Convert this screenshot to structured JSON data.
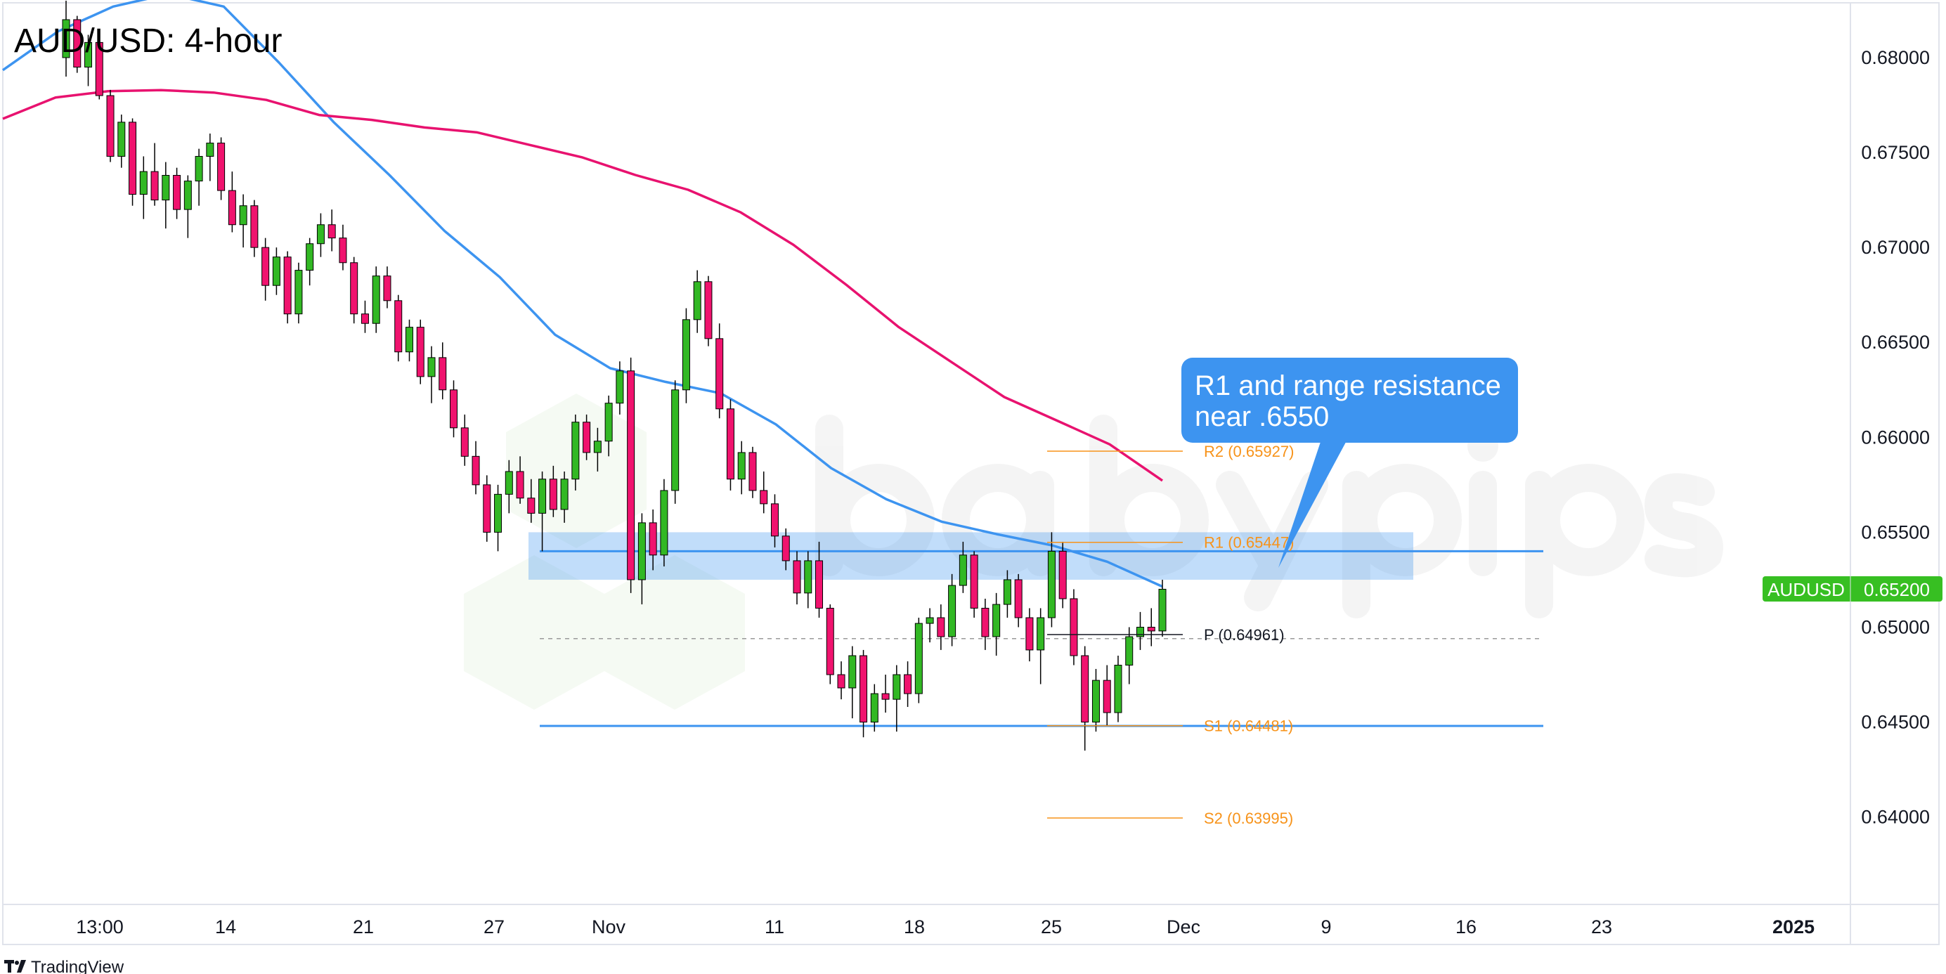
{
  "chart_data": {
    "type": "candlestick",
    "title": "AUD/USD: 4-hour",
    "symbol": "AUDUSD",
    "last_price": "0.65200",
    "ylim": [
      0.6345,
      0.684
    ],
    "y_ticks": [
      "0.68000",
      "0.67500",
      "0.67000",
      "0.66500",
      "0.66000",
      "0.65500",
      "0.65000",
      "0.64500",
      "0.64000"
    ],
    "x_ticks": [
      "13:00",
      "14",
      "21",
      "27",
      "Nov",
      "11",
      "18",
      "25",
      "Dec",
      "9",
      "16",
      "23",
      "2025"
    ],
    "candles_ohlc": [
      [
        0.68,
        0.683,
        0.679,
        0.682
      ],
      [
        0.682,
        0.6822,
        0.6792,
        0.6795
      ],
      [
        0.6795,
        0.6812,
        0.6785,
        0.6808
      ],
      [
        0.6808,
        0.681,
        0.6778,
        0.678
      ],
      [
        0.678,
        0.6783,
        0.6745,
        0.6748
      ],
      [
        0.6748,
        0.677,
        0.6742,
        0.6766
      ],
      [
        0.6766,
        0.6768,
        0.6722,
        0.6728
      ],
      [
        0.6728,
        0.6748,
        0.6715,
        0.674
      ],
      [
        0.674,
        0.6755,
        0.6722,
        0.6725
      ],
      [
        0.6725,
        0.6745,
        0.671,
        0.6738
      ],
      [
        0.6738,
        0.6742,
        0.6715,
        0.672
      ],
      [
        0.672,
        0.6738,
        0.6705,
        0.6735
      ],
      [
        0.6735,
        0.6752,
        0.6722,
        0.6748
      ],
      [
        0.6748,
        0.676,
        0.6735,
        0.6755
      ],
      [
        0.6755,
        0.6758,
        0.6725,
        0.673
      ],
      [
        0.673,
        0.674,
        0.6708,
        0.6712
      ],
      [
        0.6712,
        0.6728,
        0.67,
        0.6722
      ],
      [
        0.6722,
        0.6725,
        0.6695,
        0.67
      ],
      [
        0.67,
        0.6705,
        0.6672,
        0.668
      ],
      [
        0.668,
        0.67,
        0.6675,
        0.6695
      ],
      [
        0.6695,
        0.6698,
        0.666,
        0.6665
      ],
      [
        0.6665,
        0.6692,
        0.666,
        0.6688
      ],
      [
        0.6688,
        0.6705,
        0.668,
        0.6702
      ],
      [
        0.6702,
        0.6718,
        0.6695,
        0.6712
      ],
      [
        0.6712,
        0.672,
        0.6698,
        0.6705
      ],
      [
        0.6705,
        0.6712,
        0.6688,
        0.6692
      ],
      [
        0.6692,
        0.6695,
        0.666,
        0.6665
      ],
      [
        0.6665,
        0.6672,
        0.6655,
        0.666
      ],
      [
        0.666,
        0.669,
        0.6655,
        0.6685
      ],
      [
        0.6685,
        0.669,
        0.6668,
        0.6672
      ],
      [
        0.6672,
        0.6675,
        0.664,
        0.6645
      ],
      [
        0.6645,
        0.6662,
        0.664,
        0.6658
      ],
      [
        0.6658,
        0.6662,
        0.6628,
        0.6632
      ],
      [
        0.6632,
        0.6648,
        0.6618,
        0.6642
      ],
      [
        0.6642,
        0.665,
        0.662,
        0.6625
      ],
      [
        0.6625,
        0.663,
        0.66,
        0.6605
      ],
      [
        0.6605,
        0.6612,
        0.6585,
        0.659
      ],
      [
        0.659,
        0.6598,
        0.657,
        0.6575
      ],
      [
        0.6575,
        0.658,
        0.6545,
        0.655
      ],
      [
        0.655,
        0.6575,
        0.654,
        0.657
      ],
      [
        0.657,
        0.6588,
        0.656,
        0.6582
      ],
      [
        0.6582,
        0.659,
        0.6565,
        0.6568
      ],
      [
        0.6568,
        0.6578,
        0.6555,
        0.656
      ],
      [
        0.656,
        0.6582,
        0.654,
        0.6578
      ],
      [
        0.6578,
        0.6585,
        0.6558,
        0.6562
      ],
      [
        0.6562,
        0.6582,
        0.6555,
        0.6578
      ],
      [
        0.6578,
        0.6612,
        0.6572,
        0.6608
      ],
      [
        0.6608,
        0.6612,
        0.6588,
        0.6592
      ],
      [
        0.6592,
        0.6605,
        0.6582,
        0.6598
      ],
      [
        0.6598,
        0.6622,
        0.659,
        0.6618
      ],
      [
        0.6618,
        0.664,
        0.6612,
        0.6635
      ],
      [
        0.6635,
        0.6642,
        0.6518,
        0.6525
      ],
      [
        0.6525,
        0.656,
        0.6512,
        0.6555
      ],
      [
        0.6555,
        0.6562,
        0.653,
        0.6538
      ],
      [
        0.6538,
        0.6578,
        0.6532,
        0.6572
      ],
      [
        0.6572,
        0.663,
        0.6565,
        0.6625
      ],
      [
        0.6625,
        0.6668,
        0.6618,
        0.6662
      ],
      [
        0.6662,
        0.6688,
        0.6655,
        0.6682
      ],
      [
        0.6682,
        0.6685,
        0.6648,
        0.6652
      ],
      [
        0.6652,
        0.666,
        0.661,
        0.6615
      ],
      [
        0.6615,
        0.662,
        0.6572,
        0.6578
      ],
      [
        0.6578,
        0.6598,
        0.657,
        0.6592
      ],
      [
        0.6592,
        0.6595,
        0.6568,
        0.6572
      ],
      [
        0.6572,
        0.6582,
        0.656,
        0.6565
      ],
      [
        0.6565,
        0.657,
        0.6542,
        0.6548
      ],
      [
        0.6548,
        0.6552,
        0.653,
        0.6535
      ],
      [
        0.6535,
        0.654,
        0.6512,
        0.6518
      ],
      [
        0.6518,
        0.654,
        0.651,
        0.6535
      ],
      [
        0.6535,
        0.6545,
        0.6505,
        0.651
      ],
      [
        0.651,
        0.6512,
        0.647,
        0.6475
      ],
      [
        0.6475,
        0.6482,
        0.6462,
        0.6468
      ],
      [
        0.6468,
        0.649,
        0.6452,
        0.6485
      ],
      [
        0.6485,
        0.6488,
        0.6442,
        0.645
      ],
      [
        0.645,
        0.647,
        0.6445,
        0.6465
      ],
      [
        0.6465,
        0.6475,
        0.6455,
        0.6462
      ],
      [
        0.6462,
        0.648,
        0.6445,
        0.6475
      ],
      [
        0.6475,
        0.6482,
        0.6458,
        0.6465
      ],
      [
        0.6465,
        0.6505,
        0.646,
        0.6502
      ],
      [
        0.6502,
        0.651,
        0.6492,
        0.6505
      ],
      [
        0.6505,
        0.6512,
        0.6488,
        0.6495
      ],
      [
        0.6495,
        0.6528,
        0.649,
        0.6522
      ],
      [
        0.6522,
        0.6545,
        0.6518,
        0.6538
      ],
      [
        0.6538,
        0.654,
        0.6505,
        0.651
      ],
      [
        0.651,
        0.6515,
        0.6488,
        0.6495
      ],
      [
        0.6495,
        0.6518,
        0.6485,
        0.6512
      ],
      [
        0.6512,
        0.653,
        0.6505,
        0.6525
      ],
      [
        0.6525,
        0.6528,
        0.65,
        0.6505
      ],
      [
        0.6505,
        0.651,
        0.6482,
        0.6488
      ],
      [
        0.6488,
        0.651,
        0.647,
        0.6505
      ],
      [
        0.6505,
        0.655,
        0.65,
        0.654
      ],
      [
        0.654,
        0.6545,
        0.651,
        0.6515
      ],
      [
        0.6515,
        0.652,
        0.648,
        0.6485
      ],
      [
        0.6485,
        0.649,
        0.6435,
        0.645
      ],
      [
        0.645,
        0.6478,
        0.6445,
        0.6472
      ],
      [
        0.6472,
        0.648,
        0.6448,
        0.6455
      ],
      [
        0.6455,
        0.6485,
        0.645,
        0.648
      ],
      [
        0.648,
        0.65,
        0.647,
        0.6495
      ],
      [
        0.6495,
        0.6508,
        0.6488,
        0.65
      ],
      [
        0.65,
        0.651,
        0.649,
        0.6498
      ],
      [
        0.6498,
        0.6525,
        0.6495,
        0.652
      ]
    ],
    "moving_averages": [
      {
        "color": "#3d94f0",
        "values": [
          0.67934,
          0.68138,
          0.68269,
          0.68335,
          0.68269,
          0.67974,
          0.67658,
          0.67382,
          0.67087,
          0.66844,
          0.66541,
          0.66364,
          0.66292,
          0.66232,
          0.66068,
          0.65838,
          0.65674,
          0.65556,
          0.6549,
          0.65431,
          0.65345,
          0.65214
        ]
      },
      {
        "color": "#e8126f",
        "values": [
          0.67678,
          0.6779,
          0.67823,
          0.67829,
          0.67816,
          0.67777,
          0.67698,
          0.67672,
          0.67632,
          0.67606,
          0.6754,
          0.67474,
          0.67382,
          0.67304,
          0.67185,
          0.67014,
          0.66804,
          0.6658,
          0.66396,
          0.66212,
          0.66088,
          0.65963,
          0.65772
        ]
      }
    ],
    "resistance_zone": [
      0.6525,
      0.655
    ],
    "horizontal_lines": [
      0.654,
      0.6448
    ],
    "dashed_line": 0.6494,
    "pivots": [
      {
        "label": "R2 (0.65927)",
        "value": 0.65927,
        "color": "#f7931a"
      },
      {
        "label": "R1 (0.65447)",
        "value": 0.65447,
        "color": "#f7931a"
      },
      {
        "label": "P (0.64961)",
        "value": 0.64961,
        "color": "#131722"
      },
      {
        "label": "S1 (0.64481)",
        "value": 0.64481,
        "color": "#f7931a"
      },
      {
        "label": "S2 (0.63995)",
        "value": 0.63995,
        "color": "#f7931a"
      }
    ],
    "callout": {
      "line1": "R1 and range resistance",
      "line2": "near .6550",
      "color": "#3d94f0"
    },
    "colors": {
      "up": "#32b824",
      "down": "#f0136e",
      "price_label": "#37bf22"
    }
  },
  "watermark": {
    "logo_text": "babypips"
  },
  "footer": {
    "brand": "TradingView"
  }
}
